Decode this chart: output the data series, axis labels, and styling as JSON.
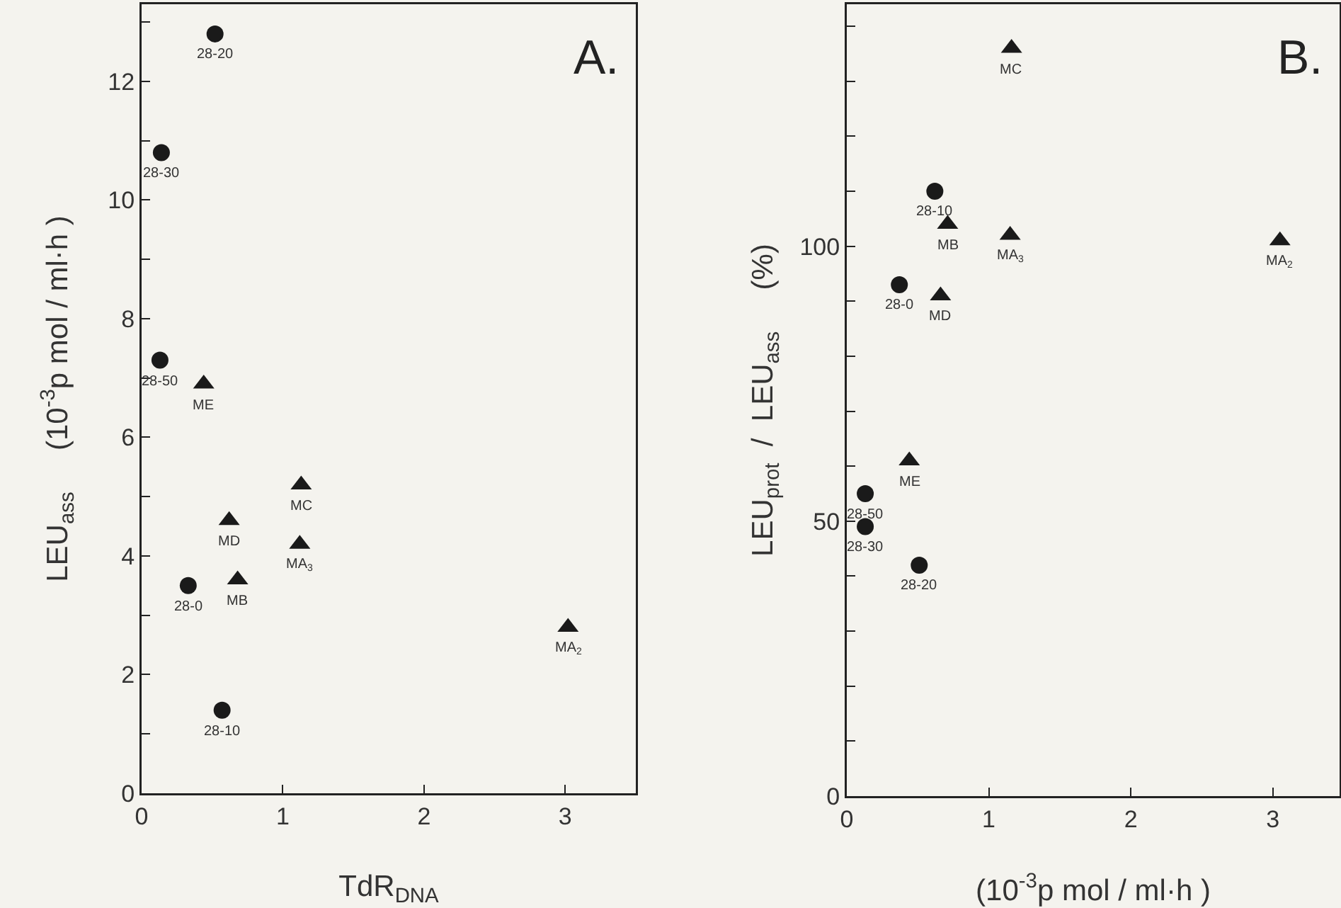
{
  "chart_data": [
    {
      "type": "scatter",
      "xlabel": "TdR$_{DNA}$",
      "ylabel": "LEU$_{ass}$     (10$^{-3}$p mol / ml·h )",
      "xlim": [
        0,
        3.5
      ],
      "xticks": [
        0,
        1,
        2,
        3
      ],
      "ylim": [
        0,
        13.3
      ],
      "yticks": [
        0,
        {
          "value": 1,
          "label": null
        },
        2,
        {
          "value": 3,
          "label": null
        },
        4,
        {
          "value": 5,
          "label": null
        },
        6,
        {
          "value": 7,
          "label": null
        },
        8,
        {
          "value": 9,
          "label": null
        },
        10,
        {
          "value": 11,
          "label": null
        },
        12,
        {
          "value": 13,
          "label": null
        }
      ],
      "series": [
        {
          "color": "#1a1a1a",
          "marker": "circle",
          "x": [
            0.52,
            0.14,
            0.13,
            0.33,
            0.57
          ],
          "values": [
            12.8,
            10.8,
            7.3,
            3.5,
            1.4
          ]
        },
        {
          "color": "#1a1a1a",
          "marker": "triangle",
          "x": [
            0.44,
            1.13,
            0.62,
            1.12,
            0.68,
            3.02
          ],
          "values": [
            6.9,
            5.2,
            4.6,
            4.2,
            3.6,
            2.8
          ]
        }
      ],
      "annotations": [
        "A.",
        {
          "text": "28-20",
          "x": 0.52,
          "y": 12.8
        },
        {
          "text": "28-30",
          "x": 0.14,
          "y": 10.8
        },
        {
          "text": "28-50",
          "x": 0.13,
          "y": 7.3
        },
        {
          "text": "28-0",
          "x": 0.33,
          "y": 3.5
        },
        {
          "text": "28-10",
          "x": 0.57,
          "y": 1.4
        },
        {
          "text": "ME",
          "x": 0.44,
          "y": 6.9
        },
        {
          "text": "MC",
          "x": 1.13,
          "y": 5.2
        },
        {
          "text": "MD",
          "x": 0.62,
          "y": 4.6
        },
        {
          "text": "MA$_{3}$",
          "x": 1.12,
          "y": 4.2
        },
        {
          "text": "MB",
          "x": 0.68,
          "y": 3.6
        },
        {
          "text": "MA$_{2}$",
          "x": 3.02,
          "y": 2.8
        }
      ]
    },
    {
      "type": "scatter",
      "xlabel": "(10$^{-3}$p mol / ml·h )",
      "ylabel": "LEU$_{prot}$  /  LEU$_{ass}$     (%)",
      "xlim": [
        0,
        3.47
      ],
      "xticks": [
        0,
        1,
        2,
        3
      ],
      "ylim": [
        0,
        144
      ],
      "yticks": [
        0,
        {
          "value": 10,
          "label": null
        },
        {
          "value": 20,
          "label": null
        },
        {
          "value": 30,
          "label": null
        },
        {
          "value": 40,
          "label": null
        },
        50,
        {
          "value": 60,
          "label": null
        },
        {
          "value": 70,
          "label": null
        },
        {
          "value": 80,
          "label": null
        },
        {
          "value": 90,
          "label": null
        },
        100,
        {
          "value": 110,
          "label": null
        },
        {
          "value": 120,
          "label": null
        },
        {
          "value": 130,
          "label": null
        },
        {
          "value": 140,
          "label": null
        }
      ],
      "series": [
        {
          "color": "#1a1a1a",
          "marker": "circle",
          "x": [
            0.62,
            0.37,
            0.13,
            0.13,
            0.51
          ],
          "values": [
            110,
            93,
            55,
            49,
            42
          ]
        },
        {
          "color": "#1a1a1a",
          "marker": "triangle",
          "x": [
            1.16,
            0.71,
            1.15,
            3.05,
            0.66,
            0.44
          ],
          "values": [
            136,
            104,
            102,
            101,
            91,
            61
          ]
        }
      ],
      "annotations": [
        "B.",
        {
          "text": "28-10",
          "x": 0.62,
          "y": 110
        },
        {
          "text": "28-0",
          "x": 0.37,
          "y": 93
        },
        {
          "text": "28-50",
          "x": 0.13,
          "y": 55
        },
        {
          "text": "28-30",
          "x": 0.13,
          "y": 49
        },
        {
          "text": "28-20",
          "x": 0.51,
          "y": 42
        },
        {
          "text": "MC",
          "x": 1.16,
          "y": 136
        },
        {
          "text": "MB",
          "x": 0.71,
          "y": 104
        },
        {
          "text": "MA$_{3}$",
          "x": 1.15,
          "y": 102
        },
        {
          "text": "MA$_{2}$",
          "x": 3.05,
          "y": 101
        },
        {
          "text": "MD",
          "x": 0.66,
          "y": 91
        },
        {
          "text": "ME",
          "x": 0.44,
          "y": 61
        }
      ]
    }
  ]
}
